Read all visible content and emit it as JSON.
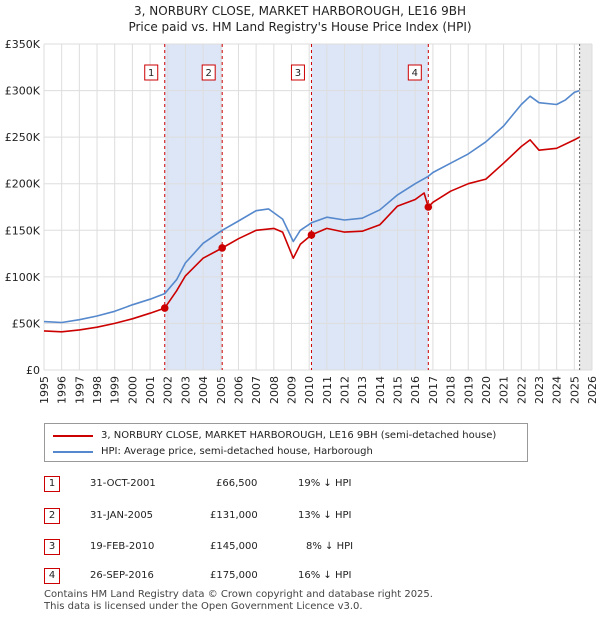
{
  "header": {
    "title": "3, NORBURY CLOSE, MARKET HARBOROUGH, LE16 9BH",
    "subtitle": "Price paid vs. HM Land Registry's House Price Index (HPI)"
  },
  "legend": {
    "items": [
      {
        "label": "3, NORBURY CLOSE, MARKET HARBOROUGH, LE16 9BH (semi-detached house)",
        "color": "#cc0000"
      },
      {
        "label": "HPI: Average price, semi-detached house, Harborough",
        "color": "#5588cc"
      }
    ]
  },
  "transactions": [
    {
      "num": "1",
      "date": "31-OCT-2001",
      "price": "£66,500",
      "hpi": "19% ↓ HPI"
    },
    {
      "num": "2",
      "date": "31-JAN-2005",
      "price": "£131,000",
      "hpi": "13% ↓ HPI"
    },
    {
      "num": "3",
      "date": "19-FEB-2010",
      "price": "£145,000",
      "hpi": "8% ↓ HPI"
    },
    {
      "num": "4",
      "date": "26-SEP-2016",
      "price": "£175,000",
      "hpi": "16% ↓ HPI"
    }
  ],
  "footer": {
    "line1": "Contains HM Land Registry data © Crown copyright and database right 2025.",
    "line2": "This data is licensed under the Open Government Licence v3.0."
  },
  "colors": {
    "property": "#cc0000",
    "hpi": "#5588cc",
    "shade": "#dde6f7",
    "marker_border": "#cc0000"
  },
  "chart_data": {
    "type": "line",
    "title": "3, NORBURY CLOSE, MARKET HARBOROUGH, LE16 9BH",
    "subtitle": "Price paid vs. HM Land Registry's House Price Index (HPI)",
    "xlabel": "",
    "ylabel": "",
    "xlim": [
      1995,
      2026
    ],
    "ylim": [
      0,
      350000
    ],
    "x_ticks": [
      1995,
      1996,
      1997,
      1998,
      1999,
      2000,
      2001,
      2002,
      2003,
      2004,
      2005,
      2006,
      2007,
      2008,
      2009,
      2010,
      2011,
      2012,
      2013,
      2014,
      2015,
      2016,
      2017,
      2018,
      2019,
      2020,
      2021,
      2022,
      2023,
      2024,
      2025,
      2026
    ],
    "x_tick_labels": [
      "1995",
      "1996",
      "1997",
      "1998",
      "1999",
      "2000",
      "2001",
      "2002",
      "2003",
      "2004",
      "2005",
      "2006",
      "2007",
      "2008",
      "2009",
      "2010",
      "2011",
      "2012",
      "2013",
      "2014",
      "2015",
      "2016",
      "2017",
      "2018",
      "2019",
      "2020",
      "2021",
      "2022",
      "2023",
      "2024",
      "2025",
      "2026"
    ],
    "y_ticks": [
      0,
      50000,
      100000,
      150000,
      200000,
      250000,
      300000,
      350000
    ],
    "y_tick_labels": [
      "£0",
      "£50K",
      "£100K",
      "£150K",
      "£200K",
      "£250K",
      "£300K",
      "£350K"
    ],
    "grid": true,
    "legend_position": "below",
    "series": [
      {
        "name": "HPI: Average price, semi-detached house, Harborough",
        "color": "#5588cc",
        "x": [
          1995,
          1996,
          1997,
          1998,
          1999,
          2000,
          2001,
          2001.83,
          2002.5,
          2003,
          2004,
          2005.08,
          2006,
          2007,
          2007.7,
          2008.5,
          2009.1,
          2009.5,
          2010.13,
          2011,
          2012,
          2013,
          2014,
          2015,
          2016,
          2016.74,
          2017,
          2018,
          2019,
          2020,
          2021,
          2022,
          2022.5,
          2023,
          2024,
          2024.5,
          2025,
          2025.3
        ],
        "y": [
          52000,
          51000,
          54000,
          58000,
          63000,
          70000,
          76000,
          82000,
          97000,
          115000,
          136000,
          150000,
          160000,
          171000,
          173000,
          162000,
          138000,
          150000,
          158000,
          164000,
          161000,
          163000,
          172000,
          188000,
          200000,
          208000,
          212000,
          222000,
          232000,
          245000,
          262000,
          285000,
          294000,
          287000,
          285000,
          290000,
          298000,
          300000
        ]
      },
      {
        "name": "3, NORBURY CLOSE, MARKET HARBOROUGH, LE16 9BH (semi-detached house)",
        "color": "#cc0000",
        "x": [
          1995,
          1996,
          1997,
          1998,
          1999,
          2000,
          2001,
          2001.83,
          2002.5,
          2003,
          2004,
          2005.08,
          2006,
          2007,
          2008,
          2008.5,
          2009.1,
          2009.5,
          2010.13,
          2011,
          2012,
          2013,
          2014,
          2015,
          2016,
          2016.5,
          2016.74,
          2017,
          2018,
          2019,
          2020,
          2021,
          2022,
          2022.5,
          2023,
          2024,
          2025,
          2025.3
        ],
        "y": [
          42000,
          41000,
          43000,
          46000,
          50000,
          55000,
          61000,
          66500,
          85000,
          101000,
          120000,
          131000,
          141000,
          150000,
          152000,
          148000,
          120000,
          135000,
          145000,
          152000,
          148000,
          149000,
          156000,
          176000,
          183000,
          190000,
          175000,
          180000,
          192000,
          200000,
          205000,
          222000,
          240000,
          247000,
          236000,
          238000,
          247000,
          250000
        ]
      }
    ],
    "sales": [
      {
        "label": "1",
        "x": 2001.83,
        "y": 66500
      },
      {
        "label": "2",
        "x": 2005.08,
        "y": 131000
      },
      {
        "label": "3",
        "x": 2010.13,
        "y": 145000
      },
      {
        "label": "4",
        "x": 2016.74,
        "y": 175000
      }
    ],
    "shaded_ranges": [
      [
        2001.83,
        2005.08
      ],
      [
        2010.13,
        2016.74
      ]
    ],
    "forecast_start": 2025.3
  }
}
